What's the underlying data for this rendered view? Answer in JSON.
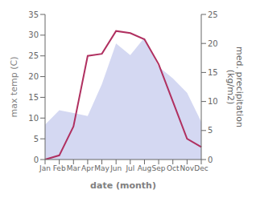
{
  "chart_data": {
    "type": "line",
    "categories": [
      "Jan",
      "Feb",
      "Mar",
      "Apr",
      "May",
      "Jun",
      "Jul",
      "Aug",
      "Sep",
      "Oct",
      "Nov",
      "Dec"
    ],
    "xlabel": "date (month)",
    "ylabel": "max temp (C)",
    "y2label": "med. precipitation\n(kg/m2)",
    "series": [
      {
        "type": "area",
        "axis": "y2",
        "color": "#b0b8e8",
        "values": [
          6.0,
          8.5,
          8.0,
          7.5,
          13.0,
          20.0,
          18.0,
          21.0,
          16.0,
          14.0,
          11.5,
          6.5
        ]
      },
      {
        "type": "line",
        "color": "#b03060",
        "values": [
          0.0,
          1.0,
          8.0,
          25.0,
          25.5,
          31.0,
          30.5,
          29.0,
          23.0,
          14.0,
          5.0,
          3.0
        ]
      }
    ],
    "ylim": [
      0,
      35
    ],
    "yticks": [
      0,
      5,
      10,
      15,
      20,
      25,
      30,
      35
    ],
    "y2lim": [
      0,
      25
    ],
    "y2ticks": [
      0,
      5,
      10,
      15,
      20,
      25
    ],
    "grid": false
  }
}
